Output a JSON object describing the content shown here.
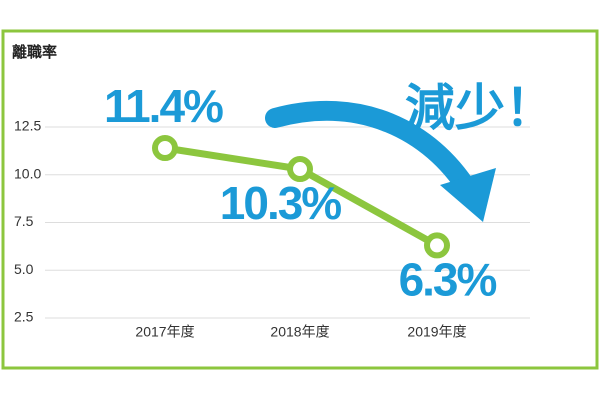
{
  "chart_data": {
    "type": "line",
    "y_label": "離職率",
    "categories": [
      "2017年度",
      "2018年度",
      "2019年度"
    ],
    "series": [
      {
        "name": "離職率",
        "color": "#8cc63e",
        "values": [
          11.4,
          10.3,
          6.3
        ],
        "value_labels": [
          "11.4%",
          "10.3%",
          "6.3%"
        ]
      }
    ],
    "ylim": [
      2.5,
      12.5
    ],
    "yticks": [
      2.5,
      {
        "value": 5,
        "label": "5.0"
      },
      7.5,
      {
        "value": 10,
        "label": "10.0"
      },
      12.5
    ],
    "grid": true,
    "annotation": "減少！"
  }
}
